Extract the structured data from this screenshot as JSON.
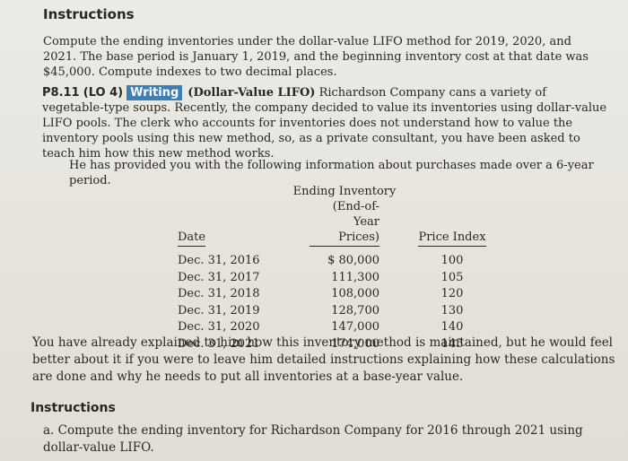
{
  "instructions_top": "Instructions",
  "paragraph1": "Compute the ending inventories under the dollar-value LIFO method for 2019, 2020, and 2021. The base period is January 1, 2019, and the beginning inventory cost at that date was $45,000. Compute indexes to two decimal places.",
  "problem": {
    "number": "P8.11",
    "lo": "(LO 4)",
    "badge": "Writing",
    "title": "(Dollar-Value LIFO)",
    "text": "Richardson Company cans a variety of vegetable-type soups. Recently, the company decided to value its inventories using dollar-value LIFO pools. The clerk who accounts for inventories does not understand how to value the inventory pools using this new method, so, as a private consultant, you have been asked to teach him how this new method works."
  },
  "paragraph3": "He has provided you with the following information about purchases made over a 6-year period.",
  "table": {
    "headers": {
      "date": "Date",
      "inventory_line1": "Ending Inventory",
      "inventory_line2": "(End-of-Year Prices)",
      "price_index": "Price Index"
    },
    "rows": [
      {
        "date": "Dec. 31, 2016",
        "inventory": "$ 80,000",
        "price_index": "100"
      },
      {
        "date": "Dec. 31, 2017",
        "inventory": "111,300",
        "price_index": "105"
      },
      {
        "date": "Dec. 31, 2018",
        "inventory": "108,000",
        "price_index": "120"
      },
      {
        "date": "Dec. 31, 2019",
        "inventory": "128,700",
        "price_index": "130"
      },
      {
        "date": "Dec. 31, 2020",
        "inventory": "147,000",
        "price_index": "140"
      },
      {
        "date": "Dec. 31, 2021",
        "inventory": "174,000",
        "price_index": "145"
      }
    ]
  },
  "paragraph4": "You have already explained to him how this inventory method is maintained, but he would feel better about it if you were to leave him detailed instructions explaining how these calculations are done and why he needs to put all inventories at a base-year value.",
  "instructions_bottom": "Instructions",
  "item_a": {
    "label": "a.",
    "text": "Compute the ending inventory for Richardson Company for 2016 through 2021 using dollar-value LIFO."
  },
  "colors": {
    "badge": "#3a7fb6",
    "text": "#2a2622",
    "paper": "#e9e5df"
  }
}
